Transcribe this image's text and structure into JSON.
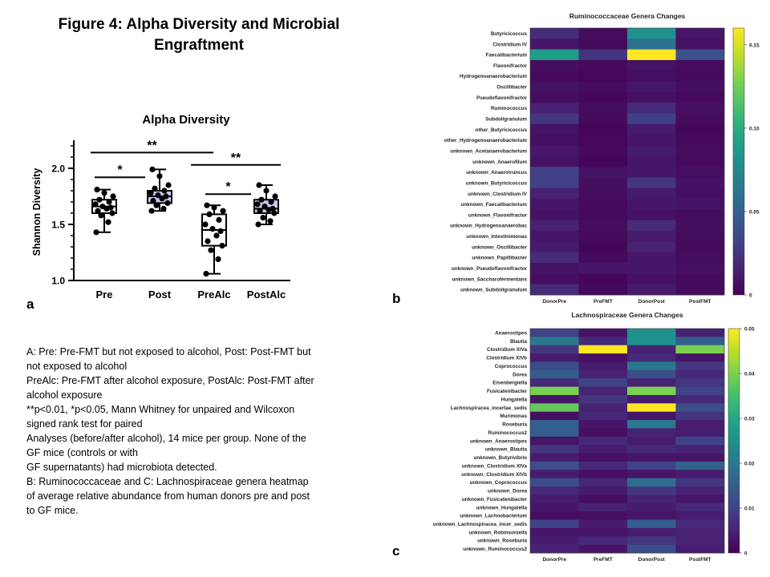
{
  "figure_title": "Figure 4: Alpha Diversity and Microbial Engraftment",
  "panel_labels": {
    "a": "a",
    "b": "b",
    "c": "c"
  },
  "caption": [
    "A: Pre: Pre-FMT but not exposed to alcohol, Post: Post-FMT but not exposed to alcohol",
    "PreAlc: Pre-FMT after alcohol exposure, PostAlc: Post-FMT after alcohol exposure",
    "**p<0.01, *p<0.05, Mann Whitney for unpaired and Wilcoxon signed rank test for paired",
    "Analyses (before/after alcohol), 14 mice per group. None of the GF mice (controls or with",
    "GF supernatants) had microbiota detected.",
    "B: Ruminococcaceae and C: Lachnospiraceae genera heatmap of average relative abundance from human donors pre and post to GF mice."
  ],
  "colors": {
    "pre": "#ffffff",
    "post": "#c9c9ee",
    "prealc": "#ffffff",
    "postalc": "#c9c9ee"
  },
  "chart_data": [
    {
      "type": "box",
      "title": "Alpha Diversity",
      "ylabel": "Shannon Diversity",
      "ylim": [
        1.0,
        2.25
      ],
      "yticks": [
        1.0,
        1.5,
        2.0
      ],
      "ytick_labels": [
        "1.0",
        "1.5",
        "2.0"
      ],
      "categories": [
        "Pre",
        "Post",
        "PreAlc",
        "PostAlc"
      ],
      "series": [
        {
          "name": "Pre",
          "min": 1.43,
          "q1": 1.6,
          "median": 1.66,
          "q3": 1.72,
          "max": 1.81,
          "points": [
            1.43,
            1.52,
            1.58,
            1.6,
            1.62,
            1.64,
            1.65,
            1.66,
            1.68,
            1.7,
            1.72,
            1.75,
            1.78,
            1.81
          ]
        },
        {
          "name": "Post",
          "min": 1.62,
          "q1": 1.69,
          "median": 1.75,
          "q3": 1.8,
          "max": 1.99,
          "points": [
            1.62,
            1.64,
            1.67,
            1.69,
            1.71,
            1.73,
            1.75,
            1.76,
            1.78,
            1.8,
            1.82,
            1.85,
            1.93,
            1.99
          ]
        },
        {
          "name": "PreAlc",
          "min": 1.06,
          "q1": 1.31,
          "median": 1.45,
          "q3": 1.59,
          "max": 1.67,
          "points": [
            1.06,
            1.19,
            1.27,
            1.31,
            1.35,
            1.4,
            1.44,
            1.46,
            1.5,
            1.54,
            1.59,
            1.62,
            1.65,
            1.67
          ]
        },
        {
          "name": "PostAlc",
          "min": 1.5,
          "q1": 1.6,
          "median": 1.64,
          "q3": 1.72,
          "max": 1.85,
          "points": [
            1.5,
            1.53,
            1.56,
            1.6,
            1.62,
            1.63,
            1.64,
            1.66,
            1.68,
            1.7,
            1.72,
            1.75,
            1.8,
            1.85
          ]
        }
      ],
      "significance": [
        {
          "from": "Pre",
          "to": "Post",
          "label": "*",
          "y": 1.92
        },
        {
          "from": "Pre",
          "to": "PreAlc",
          "label": "**",
          "y": 2.14
        },
        {
          "from": "PreAlc",
          "to": "PostAlc",
          "label": "**",
          "y": 2.03
        },
        {
          "from": "PreAlc",
          "to": "PostAlc",
          "label": "*",
          "y": 1.77
        }
      ]
    },
    {
      "type": "heatmap",
      "title": "Ruminococcaceae Genera Changes",
      "columns": [
        "DonorPre",
        "PreFMT",
        "DonorPost",
        "PostFMT"
      ],
      "rows": [
        "Butyricicoccus",
        "Clostridium IV",
        "Faecalibacterium",
        "Flavonifractor",
        "Hydrogenoanaerobacterium",
        "Oscillibacter",
        "Pseudoflavonifractor",
        "Ruminococcus",
        "Subdoligranulum",
        "other_Butyricicoccus",
        "other_Hydrogenoanaerobacterium",
        "unknown_Acetanaerobacterium",
        "unknown_Anaerofilum",
        "unknown_Anaerotruncus",
        "unknown_Butyricicoccus",
        "unknown_Clostridium IV",
        "unknown_Faecalibacterium",
        "unknown_Flavonifractor",
        "unknown_Hydrogenoanaerobac",
        "unknown_Intestinimonas",
        "unknown_Oscillibacter",
        "unknown_Papillibacter",
        "unknown_Pseudoflavonifractor",
        "unknown_Saccharofermentans",
        "unknown_Subdoligranulum"
      ],
      "values": [
        [
          0.02,
          0.005,
          0.08,
          0.01
        ],
        [
          0.01,
          0.004,
          0.06,
          0.008
        ],
        [
          0.09,
          0.025,
          0.16,
          0.04
        ],
        [
          0.006,
          0.004,
          0.008,
          0.005
        ],
        [
          0.004,
          0.003,
          0.006,
          0.004
        ],
        [
          0.008,
          0.005,
          0.01,
          0.006
        ],
        [
          0.006,
          0.003,
          0.007,
          0.004
        ],
        [
          0.015,
          0.005,
          0.02,
          0.006
        ],
        [
          0.025,
          0.004,
          0.03,
          0.005
        ],
        [
          0.008,
          0.002,
          0.012,
          0.003
        ],
        [
          0.006,
          0.003,
          0.01,
          0.004
        ],
        [
          0.01,
          0.004,
          0.012,
          0.005
        ],
        [
          0.008,
          0.003,
          0.01,
          0.004
        ],
        [
          0.03,
          0.008,
          0.01,
          0.006
        ],
        [
          0.03,
          0.006,
          0.025,
          0.008
        ],
        [
          0.015,
          0.005,
          0.012,
          0.006
        ],
        [
          0.01,
          0.004,
          0.01,
          0.008
        ],
        [
          0.008,
          0.004,
          0.008,
          0.005
        ],
        [
          0.015,
          0.005,
          0.02,
          0.006
        ],
        [
          0.01,
          0.004,
          0.012,
          0.005
        ],
        [
          0.012,
          0.003,
          0.015,
          0.004
        ],
        [
          0.02,
          0.004,
          0.01,
          0.005
        ],
        [
          0.008,
          0.01,
          0.01,
          0.006
        ],
        [
          0.006,
          0.003,
          0.008,
          0.004
        ],
        [
          0.02,
          0.004,
          0.012,
          0.005
        ]
      ],
      "vmin": 0,
      "vmax": 0.16,
      "colorbar_ticks": [
        0,
        0.05,
        0.1,
        0.15
      ],
      "colorbar_labels": [
        "0",
        "0.05",
        "0.10",
        "0.15"
      ]
    },
    {
      "type": "heatmap",
      "title": "Lachnospiraceae Genera Changes",
      "columns": [
        "DonorPre",
        "PreFMT",
        "DonorPost",
        "PostFMT"
      ],
      "rows": [
        "Anaerostipes",
        "Blautia",
        "Clostridium XIVa",
        "Clostridium XIVb",
        "Coprococcus",
        "Dorea",
        "Eisenbergiella",
        "Fusicatenibacter",
        "Hungatella",
        "Lachnospiracea_incertae_sedis",
        "Murimonas",
        "Roseburia",
        "Ruminococcus2",
        "unknown_Anaerostipes",
        "unknown_Blautia",
        "unknown_Butyrivibrio",
        "unknown_Clostridium XIVa",
        "unknown_Clostridium XIVb",
        "unknown_Coprococcus",
        "unknown_Dorea",
        "unknown_Fusicatenibacter",
        "unknown_Hungatella",
        "unknown_Lachnobacterium",
        "unknown_Lachnospiracea_incer_sedis",
        "unknown_Robinsoniella",
        "unknown_Roseburia",
        "unknown_Ruminococcus2"
      ],
      "values": [
        [
          0.01,
          0.003,
          0.025,
          0.005
        ],
        [
          0.02,
          0.006,
          0.025,
          0.015
        ],
        [
          0.008,
          0.05,
          0.005,
          0.04
        ],
        [
          0.004,
          0.002,
          0.006,
          0.003
        ],
        [
          0.012,
          0.004,
          0.02,
          0.008
        ],
        [
          0.015,
          0.005,
          0.012,
          0.006
        ],
        [
          0.006,
          0.01,
          0.005,
          0.008
        ],
        [
          0.04,
          0.005,
          0.04,
          0.01
        ],
        [
          0.003,
          0.008,
          0.004,
          0.006
        ],
        [
          0.038,
          0.005,
          0.05,
          0.012
        ],
        [
          0.002,
          0.006,
          0.003,
          0.008
        ],
        [
          0.015,
          0.003,
          0.02,
          0.004
        ],
        [
          0.015,
          0.002,
          0.005,
          0.004
        ],
        [
          0.003,
          0.006,
          0.004,
          0.01
        ],
        [
          0.008,
          0.004,
          0.006,
          0.005
        ],
        [
          0.004,
          0.002,
          0.003,
          0.003
        ],
        [
          0.012,
          0.006,
          0.01,
          0.016
        ],
        [
          0.004,
          0.002,
          0.003,
          0.004
        ],
        [
          0.012,
          0.006,
          0.018,
          0.008
        ],
        [
          0.006,
          0.004,
          0.008,
          0.005
        ],
        [
          0.004,
          0.002,
          0.005,
          0.003
        ],
        [
          0.003,
          0.005,
          0.004,
          0.006
        ],
        [
          0.002,
          0.002,
          0.003,
          0.004
        ],
        [
          0.01,
          0.004,
          0.015,
          0.006
        ],
        [
          0.003,
          0.003,
          0.004,
          0.005
        ],
        [
          0.004,
          0.006,
          0.008,
          0.005
        ],
        [
          0.005,
          0.003,
          0.012,
          0.004
        ]
      ],
      "vmin": 0,
      "vmax": 0.05,
      "colorbar_ticks": [
        0,
        0.01,
        0.02,
        0.03,
        0.04,
        0.05
      ],
      "colorbar_labels": [
        "0",
        "0.01",
        "0.02",
        "0.03",
        "0.04",
        "0.05"
      ]
    }
  ]
}
